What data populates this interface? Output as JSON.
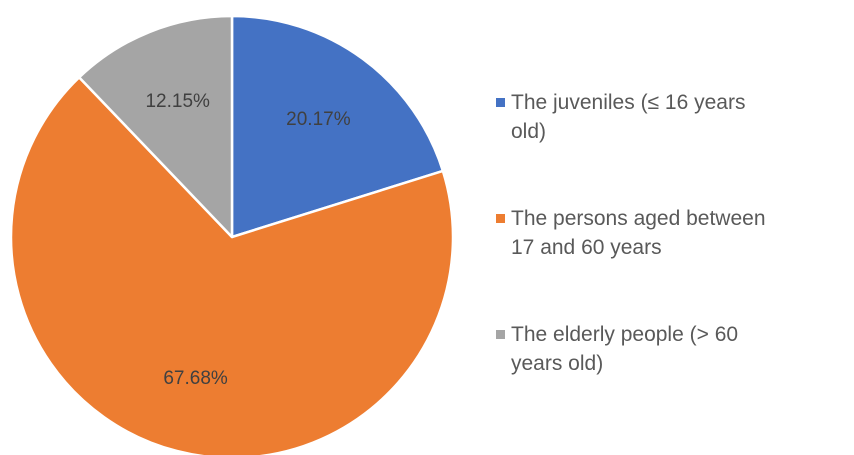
{
  "chart_data": {
    "type": "pie",
    "title": "",
    "start_angle_deg": 0,
    "direction": "clockwise",
    "legend_position": "right",
    "slices": [
      {
        "name": "The juveniles (≤ 16 years old)",
        "value": 20.17,
        "label": "20.17%",
        "color": "#4472C4"
      },
      {
        "name": "The persons aged between 17 and 60 years",
        "value": 67.68,
        "label": "67.68%",
        "color": "#ED7D31"
      },
      {
        "name": "The elderly people (> 60 years old)",
        "value": 12.15,
        "label": "12.15%",
        "color": "#A5A5A5"
      }
    ],
    "legend": [
      {
        "line1": "The juveniles (≤ 16 years",
        "line2": "old)"
      },
      {
        "line1": "The persons aged between",
        "line2": "17 and 60 years"
      },
      {
        "line1": "The elderly people (> 60",
        "line2": "years old)"
      }
    ]
  }
}
